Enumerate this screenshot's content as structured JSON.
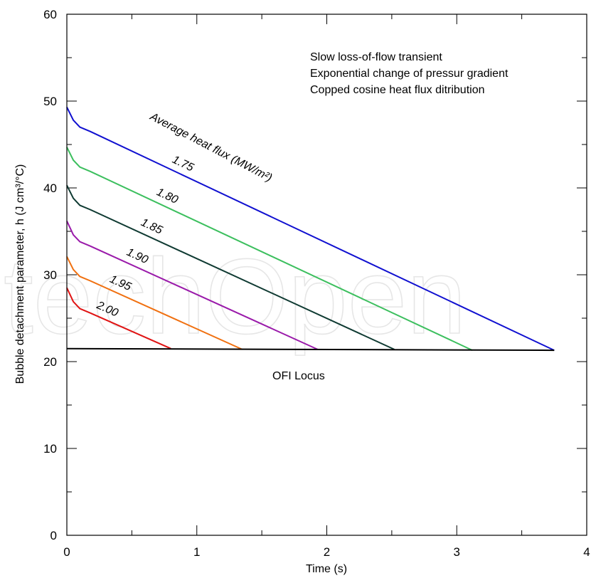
{
  "chart_data": {
    "type": "line",
    "xlabel": "Time (s)",
    "ylabel": "Bubble detachment parameter, h (J cm³/°C)",
    "xlim": [
      0,
      4
    ],
    "ylim": [
      0,
      60
    ],
    "x_major_ticks": [
      0,
      1,
      2,
      3,
      4
    ],
    "y_major_ticks": [
      0,
      10,
      20,
      30,
      40,
      50,
      60
    ],
    "x_minor_step": 0.5,
    "y_minor_step": 5,
    "grid": false,
    "annotations": [
      "Slow loss-of-flow transient",
      "Exponential change of pressur gradient",
      "Copped cosine heat flux ditribution"
    ],
    "series_group_label": "Average heat flux (MW/m²)",
    "reference_line": {
      "name": "OFI Locus",
      "x": [
        0,
        3.75
      ],
      "y": [
        21.5,
        21.3
      ],
      "color": "#000000"
    },
    "series": [
      {
        "name": "1.75",
        "color": "#1010d0",
        "x": [
          0,
          0.05,
          0.1,
          0.18,
          3.75
        ],
        "y": [
          49.3,
          47.8,
          47.0,
          46.5,
          21.3
        ]
      },
      {
        "name": "1.80",
        "color": "#3cbf5e",
        "x": [
          0,
          0.05,
          0.1,
          0.18,
          3.12
        ],
        "y": [
          44.7,
          43.2,
          42.4,
          41.9,
          21.3
        ]
      },
      {
        "name": "1.85",
        "color": "#0f3a32",
        "x": [
          0,
          0.05,
          0.1,
          0.18,
          2.52
        ],
        "y": [
          40.3,
          38.8,
          38.0,
          37.5,
          21.4
        ]
      },
      {
        "name": "1.90",
        "color": "#9a1aaa",
        "x": [
          0,
          0.05,
          0.1,
          0.18,
          1.93
        ],
        "y": [
          36.2,
          34.6,
          33.8,
          33.3,
          21.4
        ]
      },
      {
        "name": "1.95",
        "color": "#f07010",
        "x": [
          0,
          0.05,
          0.1,
          0.18,
          1.35
        ],
        "y": [
          32.1,
          30.6,
          29.8,
          29.3,
          21.4
        ]
      },
      {
        "name": "2.00",
        "color": "#e01414",
        "x": [
          0,
          0.05,
          0.1,
          0.18,
          0.8
        ],
        "y": [
          28.5,
          26.9,
          26.1,
          25.6,
          21.5
        ]
      }
    ]
  },
  "watermark": "IntechOpen"
}
